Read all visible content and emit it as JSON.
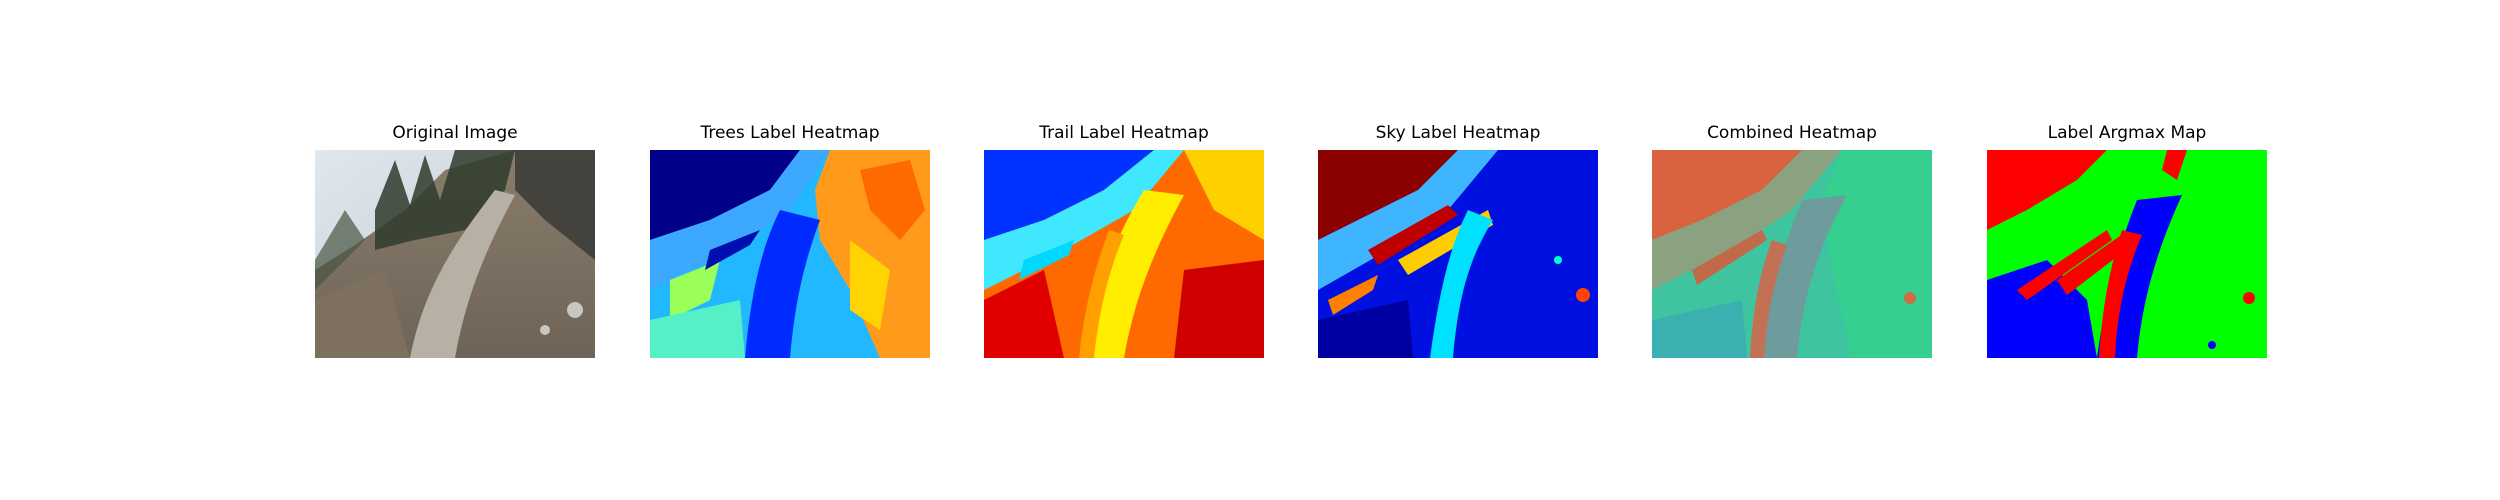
{
  "panels": [
    {
      "title": "Original Image",
      "image": "photo of a dirt trail through a sunlit forest"
    },
    {
      "title": "Trees Label Heatmap",
      "image": "jet-colormap heatmap"
    },
    {
      "title": "Trail Label Heatmap",
      "image": "jet-colormap heatmap"
    },
    {
      "title": "Sky Label Heatmap",
      "image": "jet-colormap heatmap"
    },
    {
      "title": "Combined Heatmap",
      "image": "RGB blended heatmap"
    },
    {
      "title": "Label Argmax Map",
      "image": "red/green/blue segmentation map"
    }
  ],
  "colors": {
    "jet_dark_blue": "#00008b",
    "jet_blue": "#0033ff",
    "jet_cyan": "#00d8ff",
    "jet_yellow": "#ffe600",
    "jet_red": "#e00000",
    "argmax_trees": "#00ff00",
    "argmax_trail": "#0000ff",
    "argmax_sky": "#ff0000",
    "combined_orange": "#d9633f",
    "combined_teal": "#3fb5a0"
  }
}
